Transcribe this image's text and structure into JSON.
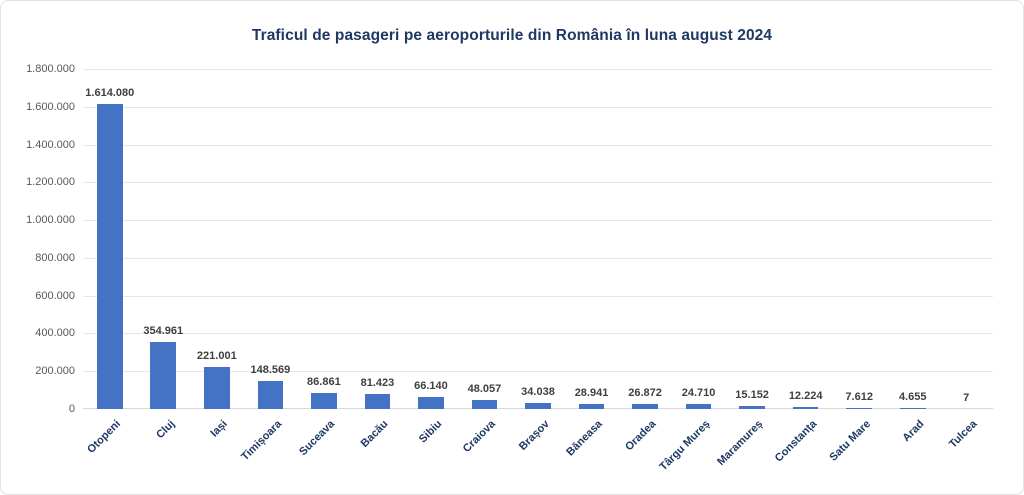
{
  "chart_data": {
    "type": "bar",
    "title": "Traficul de pasageri pe aeroporturile din România în luna august 2024",
    "categories": [
      "Otopeni",
      "Cluj",
      "Iași",
      "Timișoara",
      "Suceava",
      "Bacău",
      "Sibiu",
      "Craiova",
      "Brașov",
      "Băneasa",
      "Oradea",
      "Târgu Mureș",
      "Maramureș",
      "Constanța",
      "Satu Mare",
      "Arad",
      "Tulcea"
    ],
    "values": [
      1614080,
      354961,
      221001,
      148569,
      86861,
      81423,
      66140,
      48057,
      34038,
      28941,
      26872,
      24710,
      15152,
      12224,
      7612,
      4655,
      7
    ],
    "value_labels": [
      "1.614.080",
      "354.961",
      "221.001",
      "148.569",
      "86.861",
      "81.423",
      "66.140",
      "48.057",
      "34.038",
      "28.941",
      "26.872",
      "24.710",
      "15.152",
      "12.224",
      "7.612",
      "4.655",
      "7"
    ],
    "xlabel": "",
    "ylabel": "",
    "ylim": [
      0,
      1800000
    ],
    "ytick_step": 200000,
    "ytick_labels": [
      "0",
      "200.000",
      "400.000",
      "600.000",
      "800.000",
      "1.000.000",
      "1.200.000",
      "1.400.000",
      "1.600.000",
      "1.800.000"
    ],
    "grid": true,
    "legend_position": "none",
    "colors": {
      "bar": "#4472C4",
      "title": "#1F3864",
      "category_label": "#1F3864",
      "value_label": "#3F3F3F",
      "ytick_label": "#595959",
      "gridline": "#E7E7E7",
      "axis_line": "#D9D9D9"
    }
  }
}
